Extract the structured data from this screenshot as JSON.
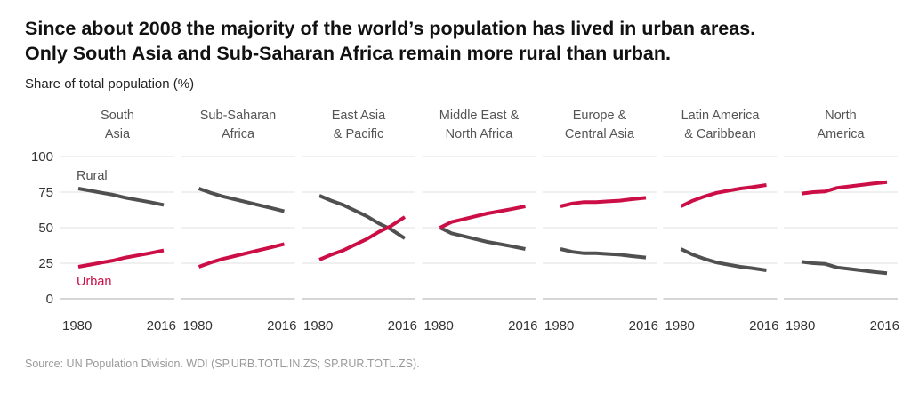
{
  "title_line1": "Since about 2008 the majority of the world’s population has lived in urban areas.",
  "title_line2": "Only South Asia and Sub-Saharan Africa remain more rural than urban.",
  "subtitle": "Share of total population (%)",
  "source": "Source: UN Population Division. WDI (SP.URB.TOTL.IN.ZS; SP.RUR.TOTL.ZS).",
  "colors": {
    "rural": "#505050",
    "urban": "#cc0e47"
  },
  "chart_data": {
    "type": "line",
    "y_ticks": [
      0,
      25,
      50,
      75,
      100
    ],
    "ylim": [
      0,
      100
    ],
    "x_ticks": [
      "1980",
      "2016"
    ],
    "xlim": [
      1980,
      2016
    ],
    "x": [
      1980,
      1985,
      1990,
      1995,
      2000,
      2005,
      2010,
      2016
    ],
    "series_labels": {
      "rural": "Rural",
      "urban": "Urban"
    },
    "panels": [
      {
        "title": [
          "South",
          "Asia"
        ],
        "rural": [
          77.5,
          76,
          74.5,
          73,
          71,
          69.5,
          68,
          66
        ],
        "urban": [
          22.5,
          24,
          25.5,
          27,
          29,
          30.5,
          32,
          34
        ]
      },
      {
        "title": [
          "Sub-Saharan",
          "Africa"
        ],
        "rural": [
          77.5,
          74.5,
          72,
          70,
          68,
          66,
          64,
          61.5
        ],
        "urban": [
          22.5,
          25.5,
          28,
          30,
          32,
          34,
          36,
          38.5
        ]
      },
      {
        "title": [
          "East Asia",
          "& Pacific"
        ],
        "rural": [
          72.5,
          69,
          66,
          62,
          58,
          53,
          49,
          42.5
        ],
        "urban": [
          27.5,
          31,
          34,
          38,
          42,
          47,
          51,
          57.5
        ]
      },
      {
        "title": [
          "Middle East &",
          "North Africa"
        ],
        "rural": [
          50,
          46,
          44,
          42,
          40,
          38.5,
          37,
          35
        ],
        "urban": [
          50,
          54,
          56,
          58,
          60,
          61.5,
          63,
          65
        ]
      },
      {
        "title": [
          "Europe &",
          "Central Asia"
        ],
        "rural": [
          35,
          33,
          32,
          32,
          31.5,
          31,
          30,
          29
        ],
        "urban": [
          65,
          67,
          68,
          68,
          68.5,
          69,
          70,
          71
        ]
      },
      {
        "title": [
          "Latin America",
          "& Caribbean"
        ],
        "rural": [
          35,
          31,
          28,
          25.5,
          24,
          22.5,
          21.5,
          20
        ],
        "urban": [
          65,
          69,
          72,
          74.5,
          76,
          77.5,
          78.5,
          80
        ]
      },
      {
        "title": [
          "North",
          "America"
        ],
        "rural": [
          26,
          25,
          24.5,
          22,
          21,
          20,
          19,
          18
        ],
        "urban": [
          74,
          75,
          75.5,
          78,
          79,
          80,
          81,
          82
        ]
      }
    ]
  }
}
